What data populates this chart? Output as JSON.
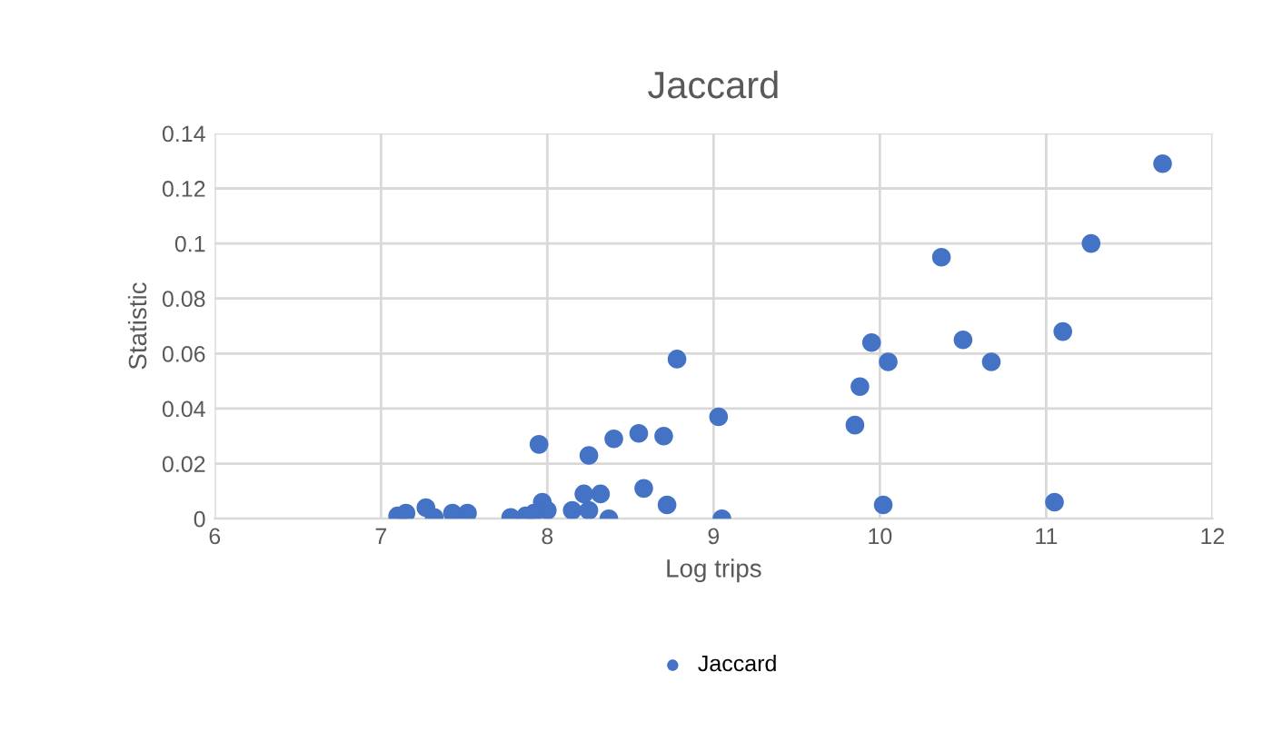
{
  "chart_data": {
    "type": "scatter",
    "title": "Jaccard",
    "xlabel": "Log trips",
    "ylabel": "Statistic",
    "series": [
      {
        "name": "Jaccard",
        "color": "#4472c4",
        "x": [
          7.1,
          7.15,
          7.27,
          7.32,
          7.43,
          7.52,
          7.78,
          7.87,
          7.92,
          7.95,
          7.97,
          8.0,
          8.15,
          8.22,
          8.25,
          8.25,
          8.32,
          8.37,
          8.4,
          8.55,
          8.58,
          8.7,
          8.72,
          8.78,
          9.03,
          9.05,
          9.85,
          9.88,
          9.95,
          10.02,
          10.05,
          10.37,
          10.5,
          10.67,
          11.05,
          11.1,
          11.27,
          11.7
        ],
        "values": [
          0.001,
          0.002,
          0.004,
          0.0005,
          0.002,
          0.002,
          0.0005,
          0.001,
          0.002,
          0.027,
          0.006,
          0.003,
          0.003,
          0.009,
          0.003,
          0.023,
          0.009,
          0.0,
          0.029,
          0.031,
          0.011,
          0.03,
          0.005,
          0.058,
          0.037,
          0.0,
          0.034,
          0.048,
          0.064,
          0.005,
          0.057,
          0.095,
          0.065,
          0.057,
          0.006,
          0.068,
          0.1,
          0.129
        ]
      }
    ],
    "xlim": [
      6,
      12
    ],
    "xticks": [
      6,
      7,
      8,
      9,
      10,
      11,
      12
    ],
    "ylim": [
      0,
      0.14
    ],
    "yticks": [
      0,
      0.02,
      0.04,
      0.06,
      0.08,
      0.1,
      0.12,
      0.14
    ],
    "grid": true,
    "legend": "bottom",
    "marker": "circle"
  }
}
